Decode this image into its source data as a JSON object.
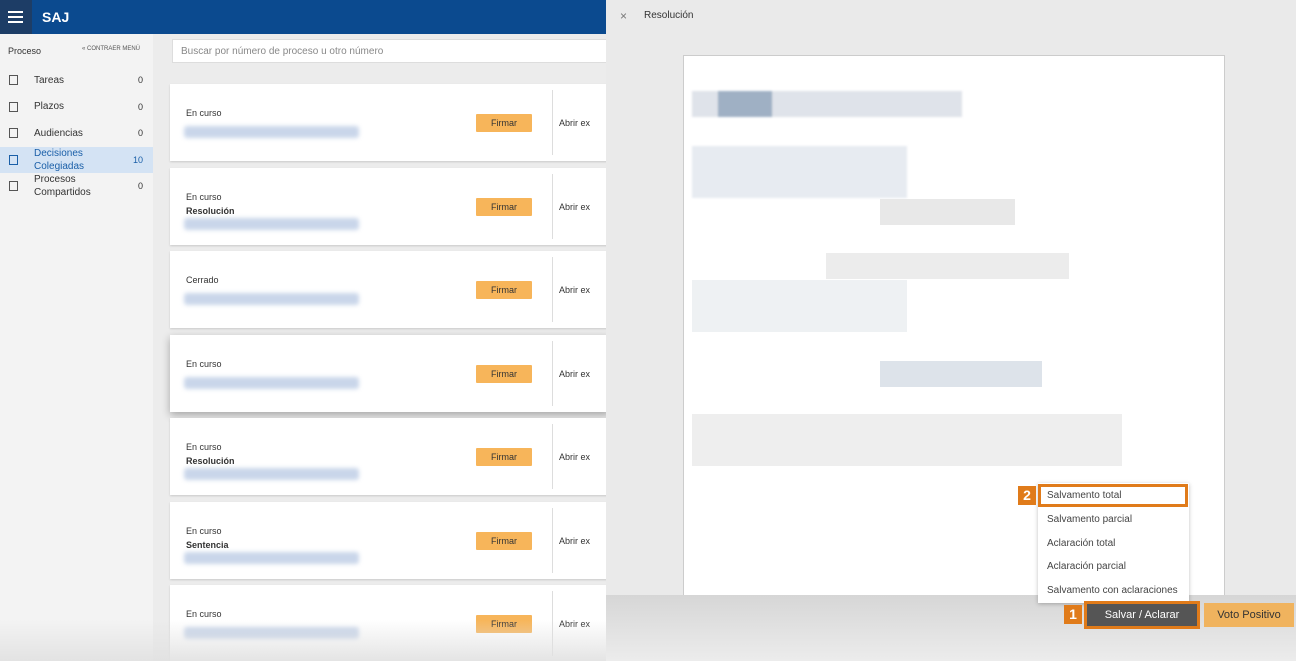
{
  "header": {
    "app": "SAJ"
  },
  "sidebar": {
    "title": "Proceso",
    "collapse": "« CONTRAER MENÚ",
    "items": [
      {
        "label": "Tareas",
        "count": "0"
      },
      {
        "label": "Plazos",
        "count": "0"
      },
      {
        "label": "Audiencias",
        "count": "0"
      },
      {
        "label": "Decisiones Colegiadas",
        "count": "10"
      },
      {
        "label": "Procesos Compartidos",
        "count": "0"
      }
    ]
  },
  "search": {
    "placeholder": "Buscar por número de proceso u otro número"
  },
  "cards": [
    {
      "status": "En curso",
      "subtitle": null,
      "button": "Firmar",
      "link": "Abrir ex"
    },
    {
      "status": "En curso",
      "subtitle": "Resolución",
      "button": "Firmar",
      "link": "Abrir ex"
    },
    {
      "status": "Cerrado",
      "subtitle": null,
      "button": "Firmar",
      "link": "Abrir ex"
    },
    {
      "status": "En curso",
      "subtitle": null,
      "button": "Firmar",
      "link": "Abrir ex"
    },
    {
      "status": "En curso",
      "subtitle": "Resolución",
      "button": "Firmar",
      "link": "Abrir ex"
    },
    {
      "status": "En curso",
      "subtitle": "Sentencia",
      "button": "Firmar",
      "link": "Abrir ex"
    },
    {
      "status": "En curso",
      "subtitle": null,
      "button": "Firmar",
      "link": "Abrir ex"
    }
  ],
  "panel": {
    "close": "×",
    "title": "Resolución",
    "menu": [
      "Salvamento total",
      "Salvamento parcial",
      "Aclaración total",
      "Aclaración parcial",
      "Salvamento con aclaraciones"
    ],
    "step_menu": "2",
    "step_button": "1",
    "button_main": "Salvar / Aclarar",
    "button_positive": "Voto Positivo"
  }
}
